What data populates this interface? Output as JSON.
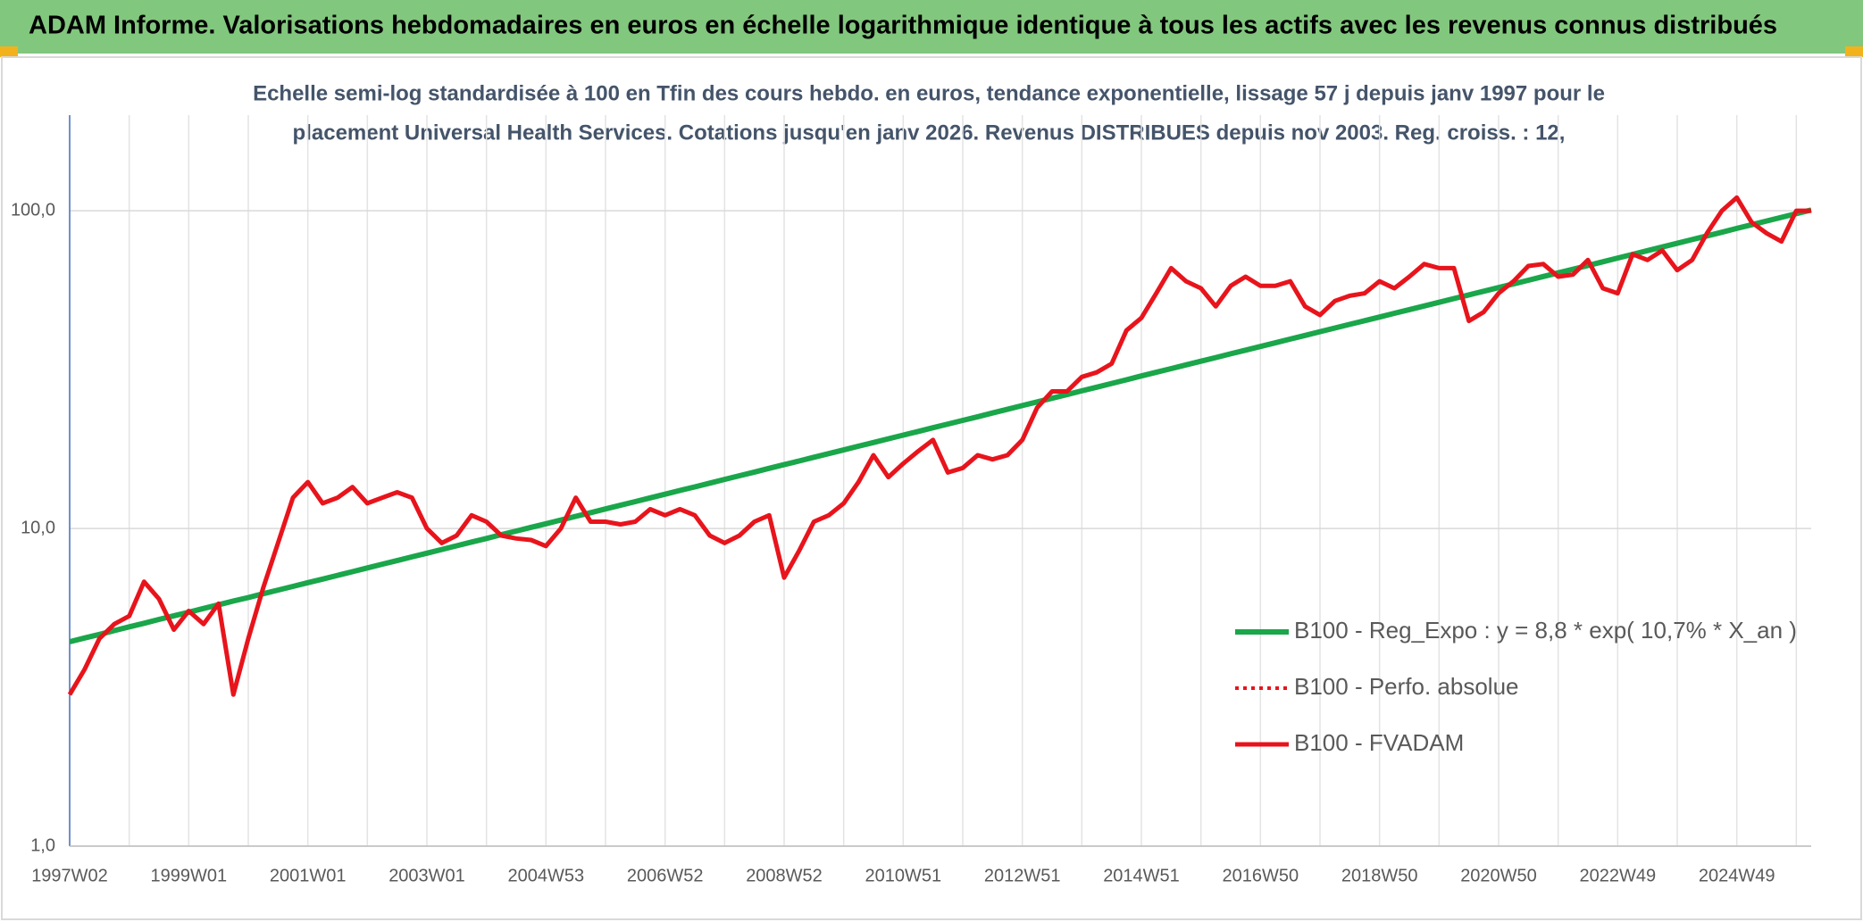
{
  "chart_data": {
    "type": "line",
    "title": "ADAM Informe. Valorisations hebdomadaires en euros en échelle logarithmique identique à tous les actifs avec les revenus connus distribués",
    "subtitle": [
      "Echelle semi-log standardisée à 100 en Tfin des cours hebdo. en euros, tendance exponentielle, lissage 57 j depuis janv 1997 pour le",
      "placement Universal Health Services. Cotations jusqu'en janv 2026. Revenus DISTRIBUES depuis nov 2003. Reg. croiss. : 12,"
    ],
    "log_scale": true,
    "grid": true,
    "legend": "right",
    "ylim": [
      1,
      200
    ],
    "yticks": [
      {
        "value": 1,
        "label": "1,0"
      },
      {
        "value": 10,
        "label": "10,0"
      },
      {
        "value": 100,
        "label": "100,0"
      }
    ],
    "categories": [
      "1997W02",
      null,
      null,
      null,
      null,
      null,
      null,
      null,
      "1999W01",
      null,
      null,
      null,
      null,
      null,
      null,
      null,
      "2001W01",
      null,
      null,
      null,
      null,
      null,
      null,
      null,
      "2003W01",
      null,
      null,
      null,
      null,
      null,
      null,
      null,
      "2004W53",
      null,
      null,
      null,
      null,
      null,
      null,
      null,
      "2006W52",
      null,
      null,
      null,
      null,
      null,
      null,
      null,
      "2008W52",
      null,
      null,
      null,
      null,
      null,
      null,
      null,
      "2010W51",
      null,
      null,
      null,
      null,
      null,
      null,
      null,
      "2012W51",
      null,
      null,
      null,
      null,
      null,
      null,
      null,
      "2014W51",
      null,
      null,
      null,
      null,
      null,
      null,
      null,
      "2016W50",
      null,
      null,
      null,
      null,
      null,
      null,
      null,
      "2018W50",
      null,
      null,
      null,
      null,
      null,
      null,
      null,
      "2020W50",
      null,
      null,
      null,
      null,
      null,
      null,
      null,
      "2022W49",
      null,
      null,
      null,
      null,
      null,
      null,
      null,
      "2024W49",
      null,
      null,
      null,
      null,
      null
    ],
    "series": [
      {
        "name": "B100 - Reg_Expo : y = 8,8 * exp( 10,7% *  X_an )",
        "color": "#1aa64a",
        "style": "solid",
        "width": 6,
        "values": [
          4.4,
          4.52,
          4.64,
          4.77,
          4.9,
          5.03,
          5.17,
          5.31,
          5.45,
          5.6,
          5.75,
          5.91,
          6.06,
          6.23,
          6.4,
          6.57,
          6.75,
          6.93,
          7.12,
          7.31,
          7.51,
          7.72,
          7.92,
          8.14,
          8.36,
          8.59,
          8.82,
          9.06,
          9.3,
          9.56,
          9.81,
          10.08,
          10.35,
          10.63,
          10.92,
          11.21,
          11.52,
          11.83,
          12.15,
          12.48,
          12.82,
          13.17,
          13.52,
          13.89,
          14.27,
          14.65,
          15.05,
          15.46,
          15.88,
          16.31,
          16.75,
          17.21,
          17.67,
          18.15,
          18.64,
          19.15,
          19.67,
          20.2,
          20.75,
          21.31,
          21.89,
          22.48,
          23.09,
          23.72,
          24.36,
          25.02,
          25.7,
          26.39,
          27.11,
          27.84,
          28.6,
          29.37,
          30.2,
          31.02,
          31.86,
          32.72,
          33.61,
          34.52,
          35.45,
          36.41,
          37.4,
          38.41,
          39.45,
          40.52,
          41.62,
          42.75,
          43.9,
          45.09,
          46.3,
          47.56,
          48.84,
          50.17,
          51.52,
          52.92,
          54.35,
          55.82,
          57.3,
          58.85,
          60.45,
          62.08,
          63.76,
          65.49,
          67.26,
          69.09,
          71.0,
          72.92,
          74.9,
          76.93,
          79.01,
          81.15,
          83.35,
          85.6,
          88.0,
          90.38,
          92.83,
          95.35,
          97.93,
          100.58
        ]
      },
      {
        "name": "B100 - Perfo. absolue",
        "color": "#e8141c",
        "style": "dotted",
        "width": 4,
        "values": [
          3.0,
          3.6,
          4.5,
          5.0,
          5.3,
          6.8,
          6.0,
          4.8,
          5.5,
          5.0,
          5.8,
          3.0,
          4.5,
          6.5,
          9.0,
          12.5,
          14,
          12,
          12.5,
          13.5,
          12,
          12.5,
          13,
          12.5,
          10,
          9,
          9.5,
          11,
          10.5,
          9.5,
          9.3,
          9.2,
          8.8,
          10,
          12.5,
          10.5,
          10.5,
          10.3,
          10.5,
          11.5,
          11,
          11.5,
          11,
          9.5,
          9,
          9.5,
          10.5,
          11,
          7,
          8.5,
          10.5,
          11,
          12,
          14,
          17,
          14.5,
          16,
          17.5,
          19,
          15,
          15.5,
          17,
          16.5,
          17,
          19,
          24,
          27,
          27,
          30,
          31,
          33,
          42,
          46,
          55,
          66,
          60,
          57,
          50,
          58,
          62,
          58,
          58,
          60,
          50,
          47,
          52,
          54,
          55,
          60,
          57,
          62,
          68,
          66,
          66,
          45,
          48,
          55,
          60,
          67,
          68,
          62,
          63,
          70,
          57,
          55,
          73,
          70,
          75,
          65,
          70,
          85,
          100,
          110,
          92,
          85,
          80,
          100,
          100
        ]
      },
      {
        "name": "B100 - FVADAM",
        "color": "#e8141c",
        "style": "solid",
        "width": 5,
        "values": [
          3.0,
          3.6,
          4.5,
          5.0,
          5.3,
          6.8,
          6.0,
          4.8,
          5.5,
          5.0,
          5.8,
          3.0,
          4.5,
          6.5,
          9.0,
          12.5,
          14,
          12,
          12.5,
          13.5,
          12,
          12.5,
          13,
          12.5,
          10,
          9,
          9.5,
          11,
          10.5,
          9.5,
          9.3,
          9.2,
          8.8,
          10,
          12.5,
          10.5,
          10.5,
          10.3,
          10.5,
          11.5,
          11,
          11.5,
          11,
          9.5,
          9,
          9.5,
          10.5,
          11,
          7,
          8.5,
          10.5,
          11,
          12,
          14,
          17,
          14.5,
          16,
          17.5,
          19,
          15,
          15.5,
          17,
          16.5,
          17,
          19,
          24,
          27,
          27,
          30,
          31,
          33,
          42,
          46,
          55,
          66,
          60,
          57,
          50,
          58,
          62,
          58,
          58,
          60,
          50,
          47,
          52,
          54,
          55,
          60,
          57,
          62,
          68,
          66,
          66,
          45,
          48,
          55,
          60,
          67,
          68,
          62,
          63,
          70,
          57,
          55,
          73,
          70,
          75,
          65,
          70,
          85,
          100,
          110,
          92,
          85,
          80,
          100,
          100
        ]
      }
    ]
  }
}
